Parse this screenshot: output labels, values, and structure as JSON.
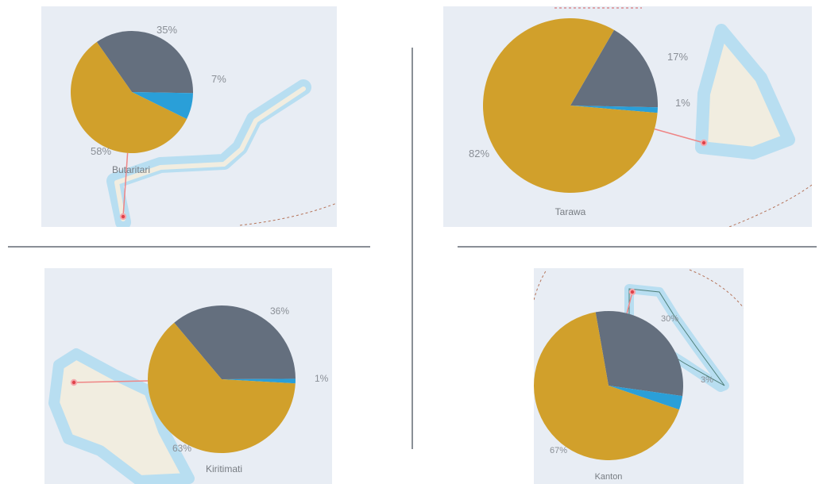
{
  "colors": {
    "gold": "#d1a02b",
    "slate": "#646f7e",
    "blue": "#2a9fd8",
    "leader": "#ef8585",
    "marker": "#e0424a",
    "water": "#b8def1",
    "land": "#f1ede0"
  },
  "chart_data": [
    {
      "type": "pie",
      "title": "Butaritari",
      "slices": [
        {
          "label": "35%",
          "value": 35,
          "color": "#646f7e"
        },
        {
          "label": "7%",
          "value": 7,
          "color": "#2a9fd8"
        },
        {
          "label": "58%",
          "value": 58,
          "color": "#d1a02b"
        }
      ]
    },
    {
      "type": "pie",
      "title": "Tarawa",
      "slices": [
        {
          "label": "17%",
          "value": 17,
          "color": "#646f7e"
        },
        {
          "label": "1%",
          "value": 1,
          "color": "#2a9fd8"
        },
        {
          "label": "82%",
          "value": 82,
          "color": "#d1a02b"
        }
      ]
    },
    {
      "type": "pie",
      "title": "Kiritimati",
      "slices": [
        {
          "label": "36%",
          "value": 36,
          "color": "#646f7e"
        },
        {
          "label": "1%",
          "value": 1,
          "color": "#2a9fd8"
        },
        {
          "label": "63%",
          "value": 63,
          "color": "#d1a02b"
        }
      ]
    },
    {
      "type": "pie",
      "title": "Kanton",
      "slices": [
        {
          "label": "30%",
          "value": 30,
          "color": "#646f7e"
        },
        {
          "label": "3%",
          "value": 3,
          "color": "#2a9fd8"
        },
        {
          "label": "67%",
          "value": 67,
          "color": "#d1a02b"
        }
      ]
    }
  ]
}
